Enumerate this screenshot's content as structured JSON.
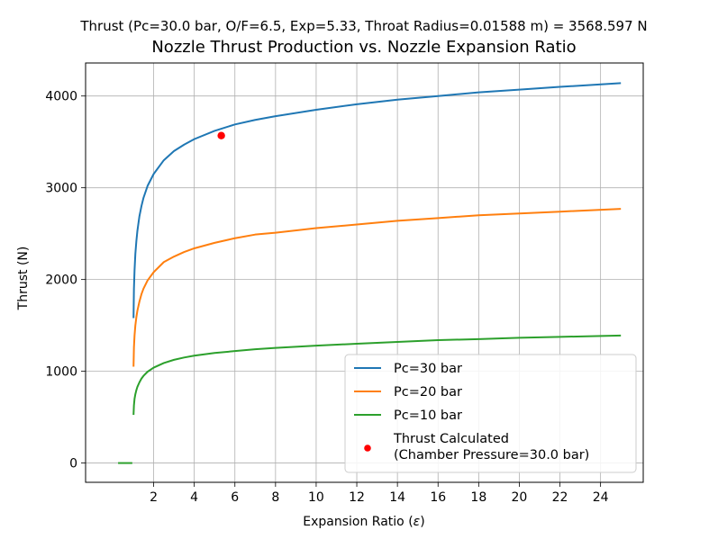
{
  "chart_data": {
    "type": "line",
    "suptitle": "Thrust (Pc=30.0 bar, O/F=6.5, Exp=5.33, Throat Radius=0.01588 m) = 3568.597 N",
    "title": "Nozzle Thrust Production vs. Nozzle Expansion Ratio",
    "xlabel": "Expansion Ratio (ε)",
    "ylabel": "Thrust (N)",
    "xlim": [
      -1.35,
      26.1
    ],
    "ylim": [
      -210,
      4360
    ],
    "xticks": [
      2,
      4,
      6,
      8,
      10,
      12,
      14,
      16,
      18,
      20,
      22,
      24
    ],
    "yticks": [
      0,
      1000,
      2000,
      3000,
      4000
    ],
    "grid": true,
    "legend_position": "lower-right",
    "series": [
      {
        "name": "Pc=30 bar",
        "color": "#1f77b4",
        "x": [
          1.01,
          1.03,
          1.06,
          1.1,
          1.15,
          1.2,
          1.3,
          1.4,
          1.5,
          1.7,
          2.0,
          2.5,
          3.0,
          3.5,
          4.0,
          5.0,
          6.0,
          7.0,
          8.0,
          10.0,
          12.0,
          14.0,
          16.0,
          18.0,
          20.0,
          22.0,
          25.0
        ],
        "y": [
          1580,
          1900,
          2100,
          2280,
          2420,
          2530,
          2690,
          2800,
          2890,
          3020,
          3150,
          3300,
          3400,
          3470,
          3530,
          3620,
          3690,
          3740,
          3780,
          3850,
          3910,
          3960,
          4000,
          4040,
          4070,
          4100,
          4140
        ]
      },
      {
        "name": "Pc=20 bar",
        "color": "#ff7f0e",
        "x": [
          1.01,
          1.03,
          1.06,
          1.1,
          1.15,
          1.2,
          1.3,
          1.4,
          1.5,
          1.7,
          2.0,
          2.5,
          3.0,
          3.5,
          4.0,
          5.0,
          6.0,
          7.0,
          8.0,
          10.0,
          12.0,
          14.0,
          16.0,
          18.0,
          20.0,
          22.0,
          25.0
        ],
        "y": [
          1050,
          1260,
          1390,
          1500,
          1590,
          1660,
          1760,
          1840,
          1900,
          1990,
          2080,
          2190,
          2250,
          2300,
          2340,
          2400,
          2450,
          2490,
          2510,
          2560,
          2600,
          2640,
          2670,
          2700,
          2720,
          2740,
          2770
        ]
      },
      {
        "name": "Pc=10 bar",
        "color": "#2ca02c",
        "x": [
          1.01,
          1.03,
          1.06,
          1.1,
          1.15,
          1.2,
          1.3,
          1.4,
          1.5,
          1.7,
          2.0,
          2.5,
          3.0,
          3.5,
          4.0,
          5.0,
          6.0,
          7.0,
          8.0,
          10.0,
          12.0,
          14.0,
          16.0,
          18.0,
          20.0,
          22.0,
          25.0
        ],
        "y": [
          525,
          630,
          700,
          750,
          795,
          830,
          880,
          920,
          950,
          995,
          1040,
          1090,
          1125,
          1150,
          1170,
          1200,
          1220,
          1240,
          1255,
          1280,
          1300,
          1320,
          1340,
          1350,
          1365,
          1375,
          1390
        ]
      }
    ],
    "extra_segment": {
      "color": "#2ca02c",
      "x": [
        0.25,
        0.95
      ],
      "y": [
        0,
        0
      ]
    },
    "point": {
      "name": "Thrust Calculated\n(Chamber Pressure=30.0 bar)",
      "x": 5.33,
      "y": 3568.597,
      "color": "#ff0000"
    }
  }
}
